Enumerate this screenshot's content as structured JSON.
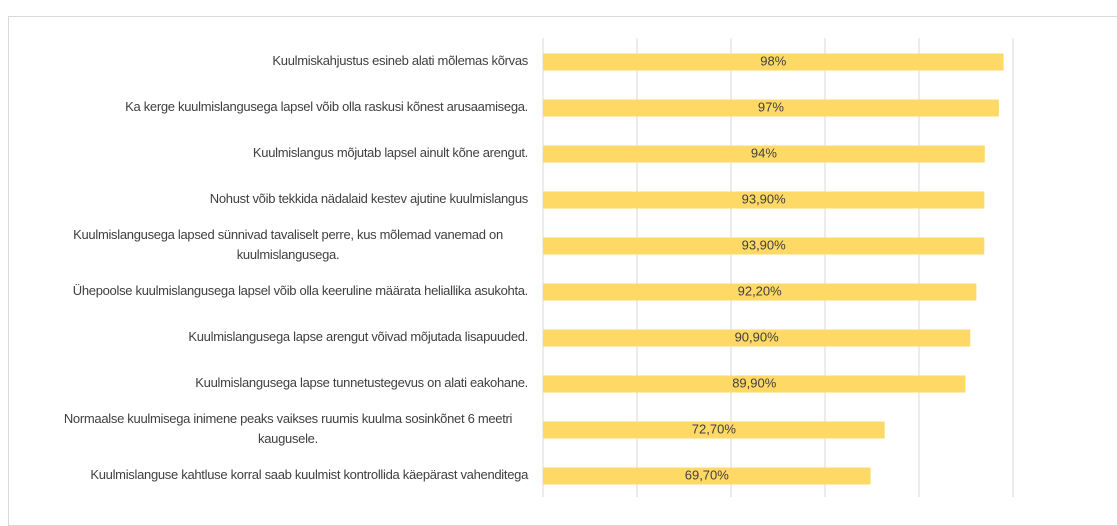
{
  "chart_data": {
    "type": "hbar",
    "categories": [
      "Kuulmiskahjustus esineb alati mõlemas kõrvas",
      "Ka kerge kuulmislangusega lapsel võib olla raskusi kõnest arusaamisega.",
      "Kuulmislangus mõjutab lapsel ainult kõne arengut.",
      "Nohust võib tekkida nädalaid kestev ajutine kuulmislangus",
      "Kuulmislangusega lapsed sünnivad tavaliselt perre, kus mõlemad vanemad on kuulmislangusega.",
      "Ühepoolse kuulmislangusega lapsel võib olla keeruline määrata heliallika asukohta.",
      "Kuulmislangusega lapse arengut võivad mõjutada lisapuuded.",
      "Kuulmislangusega lapse tunnetustegevus on alati eakohane.",
      "Normaalse kuulmisega inimene peaks vaikses ruumis kuulma sosinkõnet 6 meetri kaugusele.",
      "Kuulmislanguse kahtluse korral saab kuulmist kontrollida käepärast vahenditega"
    ],
    "values": [
      98,
      97,
      94,
      93.9,
      93.9,
      92.2,
      90.9,
      89.9,
      72.7,
      69.7
    ],
    "value_labels": [
      "98%",
      "97%",
      "94%",
      "93,90%",
      "93,90%",
      "92,20%",
      "90,90%",
      "89,90%",
      "72,70%",
      "69,70%"
    ],
    "color": "#ffd966",
    "xlim": [
      0,
      100
    ],
    "xticks": [
      0,
      20,
      40,
      60,
      80,
      100
    ],
    "grid": true
  }
}
